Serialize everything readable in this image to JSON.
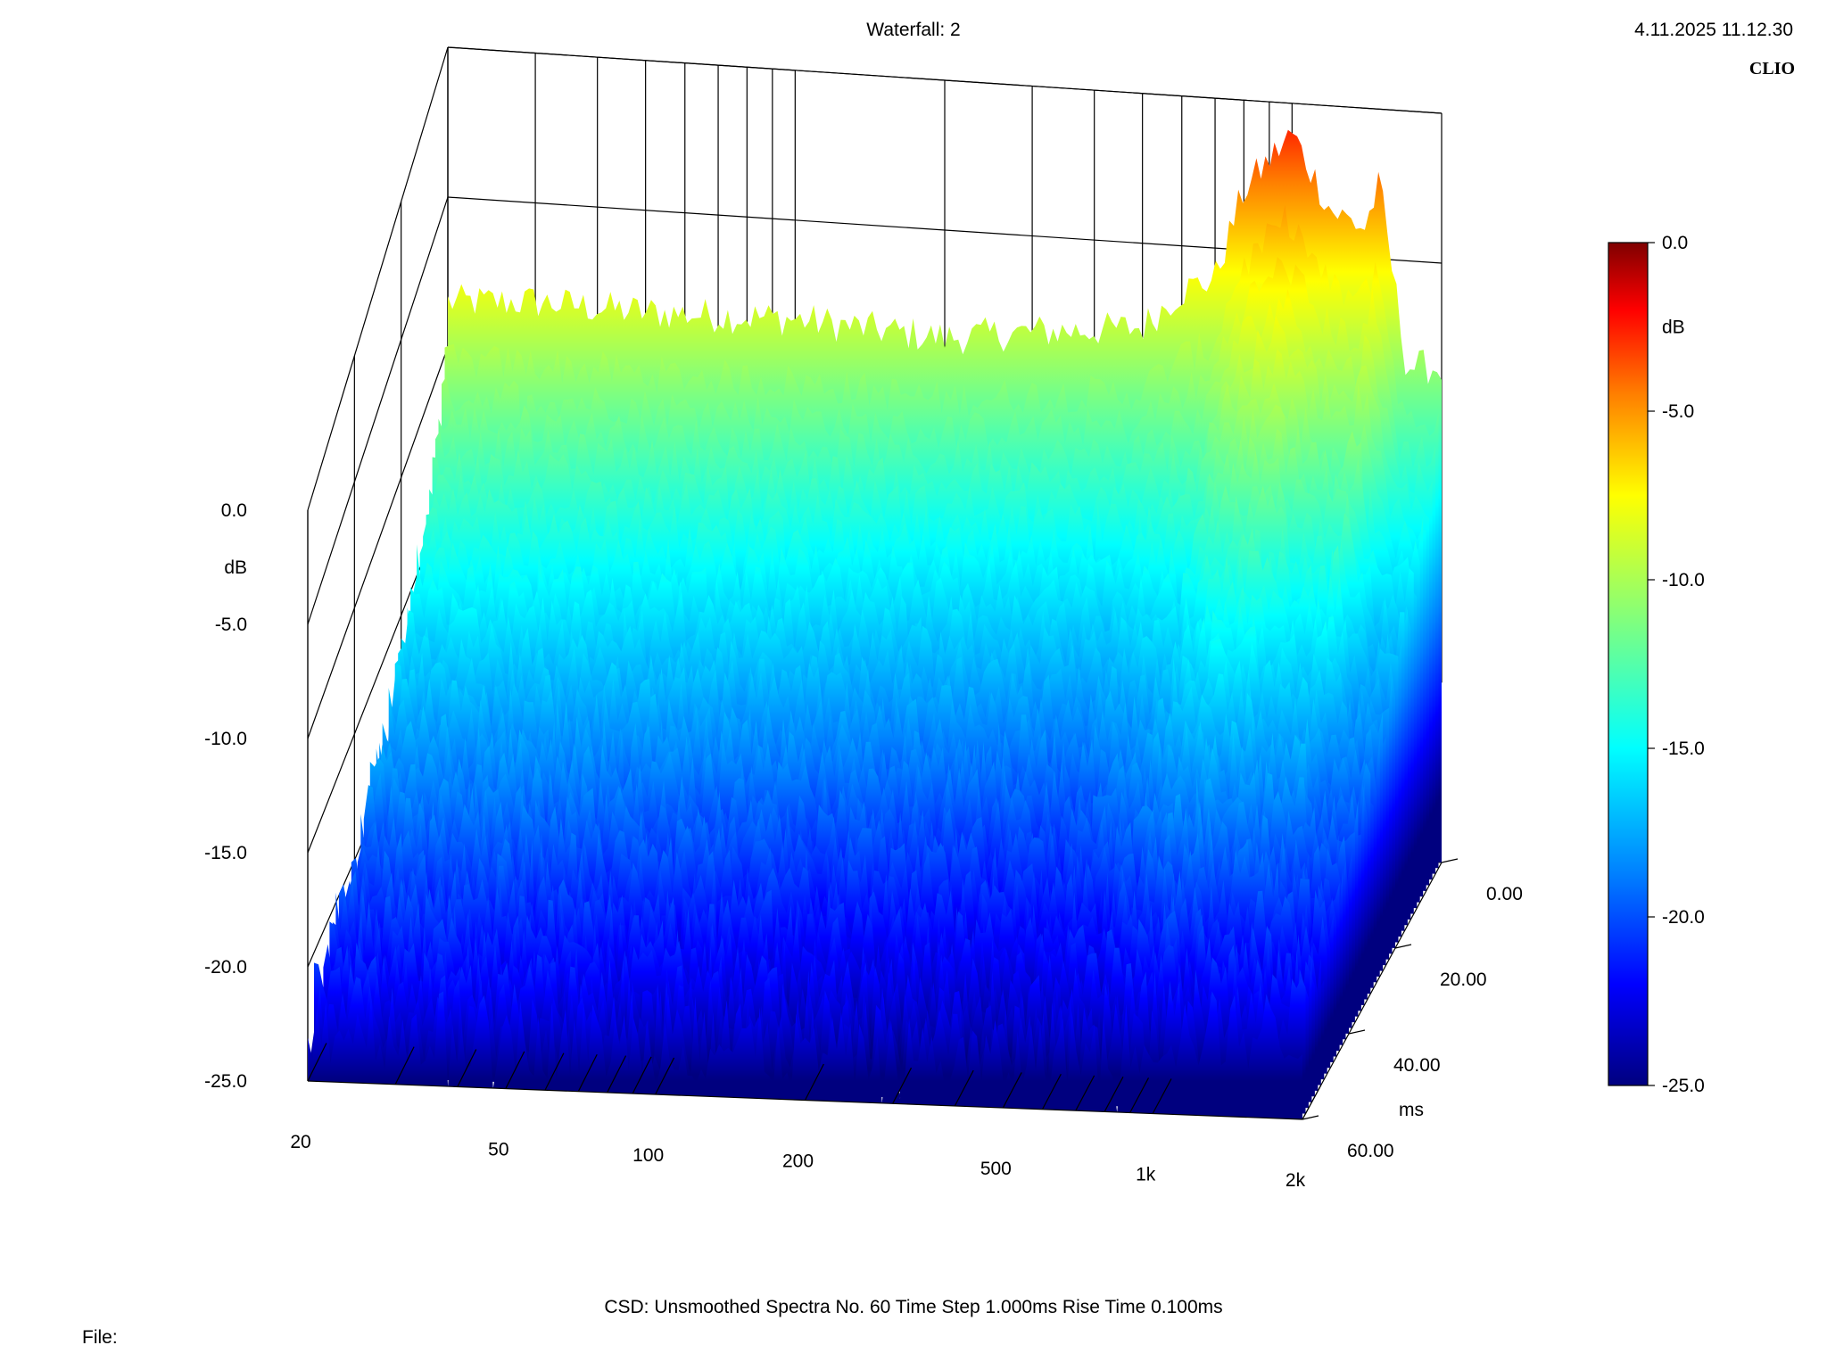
{
  "header": {
    "title": "Waterfall: 2",
    "timestamp": "4.11.2025 11.12.30",
    "brand": "CLIO"
  },
  "footer": {
    "settings": "CSD:   Unsmoothed   Spectra No. 60   Time Step 1.000ms   Rise Time 0.100ms",
    "file_label": "File:"
  },
  "chart_data": {
    "type": "waterfall",
    "x_axis": {
      "scale": "log",
      "range": [
        20,
        2000
      ],
      "ticks": [
        20,
        50,
        100,
        200,
        500,
        1000,
        2000
      ],
      "tick_labels": [
        "20",
        "50",
        "100",
        "200",
        "500",
        "1k",
        "2k"
      ]
    },
    "y_axis": {
      "label": "dB",
      "range": [
        -25,
        0
      ],
      "ticks": [
        0,
        -5,
        -10,
        -15,
        -20,
        -25
      ],
      "tick_labels": [
        "0.0",
        "-5.0",
        "-10.0",
        "-15.0",
        "-20.0",
        "-25.0"
      ]
    },
    "z_axis": {
      "label": "ms",
      "range": [
        0,
        60
      ],
      "ticks": [
        0,
        20,
        40,
        60
      ],
      "tick_labels": [
        "0.00",
        "20.00",
        "40.00",
        "60.00"
      ]
    },
    "colorbar": {
      "label": "dB",
      "range": [
        -25,
        0
      ],
      "tick_labels": [
        "0.0",
        "-5.0",
        "-10.0",
        "-15.0",
        "-20.0",
        "-25.0"
      ],
      "colors": [
        "#00007f",
        "#0000ff",
        "#007fff",
        "#00ffff",
        "#7fff7f",
        "#ffff00",
        "#ff7f00",
        "#ff0000",
        "#7f0000"
      ]
    },
    "approx_initial_spectrum_db": [
      {
        "hz": 20,
        "db": -8.5
      },
      {
        "hz": 30,
        "db": -8.3
      },
      {
        "hz": 50,
        "db": -8.4
      },
      {
        "hz": 100,
        "db": -8.3
      },
      {
        "hz": 200,
        "db": -8.6
      },
      {
        "hz": 300,
        "db": -8.2
      },
      {
        "hz": 400,
        "db": -8.0
      },
      {
        "hz": 500,
        "db": -7.8
      },
      {
        "hz": 600,
        "db": -6.5
      },
      {
        "hz": 700,
        "db": -6.0
      },
      {
        "hz": 800,
        "db": -3.0
      },
      {
        "hz": 1000,
        "db": -1.0
      },
      {
        "hz": 1200,
        "db": -3.5
      },
      {
        "hz": 1400,
        "db": -4.0
      },
      {
        "hz": 1500,
        "db": -2.5
      },
      {
        "hz": 1700,
        "db": -8.5
      },
      {
        "hz": 2000,
        "db": -8.5
      }
    ],
    "approx_decay_db_at_60ms": [
      {
        "hz": 20,
        "db": -22.5
      },
      {
        "hz": 100,
        "db": -22.8
      },
      {
        "hz": 500,
        "db": -23.0
      },
      {
        "hz": 1000,
        "db": -21.5
      },
      {
        "hz": 2000,
        "db": -21.0
      }
    ],
    "grid": true
  }
}
